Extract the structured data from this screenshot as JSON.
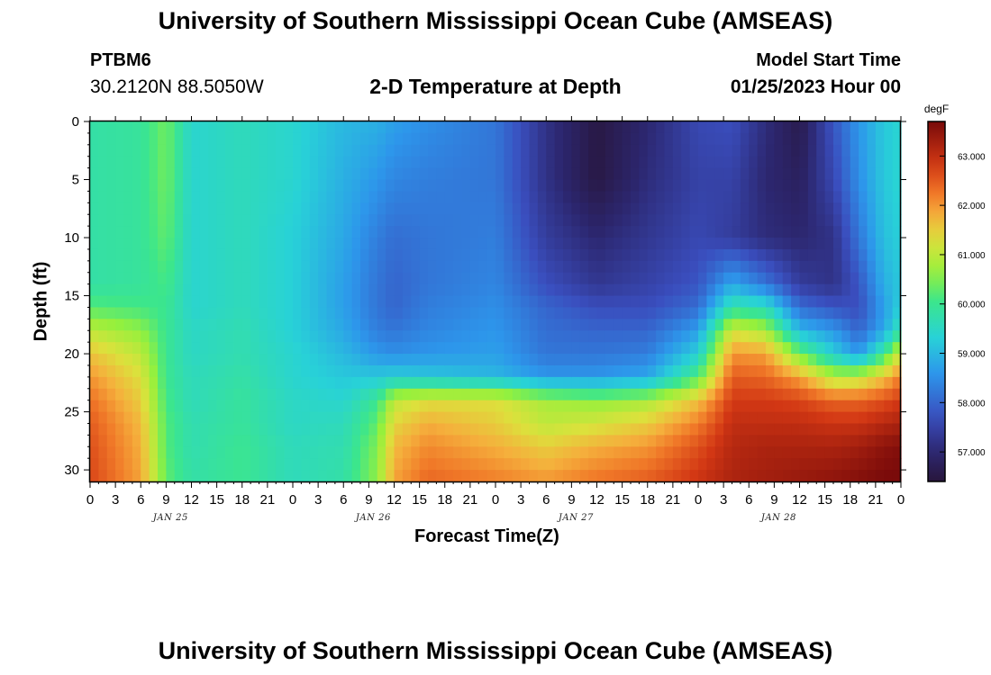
{
  "header": {
    "title": "University of Southern Mississippi Ocean Cube (AMSEAS)",
    "station": "PTBM6",
    "coords": "30.2120N  88.5050W",
    "chart_title": "2-D Temperature at Depth",
    "model_start_label": "Model Start Time",
    "model_start_value": "01/25/2023 Hour 00"
  },
  "footer": {
    "title": "University of Southern Mississippi Ocean Cube (AMSEAS)"
  },
  "chart_data": {
    "type": "heatmap",
    "xlabel": "Forecast Time(Z)",
    "ylabel": "Depth (ft)",
    "x_ticks": [
      "0",
      "3",
      "6",
      "9",
      "12",
      "15",
      "18",
      "21",
      "0",
      "3",
      "6",
      "9",
      "12",
      "15",
      "18",
      "21",
      "0",
      "3",
      "6",
      "9",
      "12",
      "15",
      "18",
      "21",
      "0",
      "3",
      "6",
      "9",
      "12",
      "15",
      "18",
      "21",
      "0"
    ],
    "x_date_labels": [
      {
        "label": "JAN 25",
        "hour": 9
      },
      {
        "label": "JAN 26",
        "hour": 33
      },
      {
        "label": "JAN 27",
        "hour": 57
      },
      {
        "label": "JAN 28",
        "hour": 81
      }
    ],
    "xlim_hours": [
      0,
      96
    ],
    "y_ticks": [
      0,
      5,
      10,
      15,
      20,
      25,
      30
    ],
    "ylim": [
      0,
      31
    ],
    "colorbar": {
      "unit": "degF",
      "min": 56.4,
      "max": 63.7,
      "ticks": [
        "63.000",
        "62.000",
        "61.000",
        "60.000",
        "59.000",
        "58.000",
        "57.000"
      ]
    },
    "profile_hours": [
      0,
      6,
      9,
      12,
      18,
      24,
      30,
      34,
      36,
      40,
      48,
      54,
      60,
      66,
      72,
      76,
      80,
      84,
      88,
      91,
      94,
      96
    ],
    "profile_depths": [
      0,
      5,
      10,
      14,
      16,
      18,
      20,
      22,
      24,
      26,
      28,
      31
    ],
    "values": [
      [
        59.8,
        59.8,
        59.8,
        59.8,
        60.2,
        61.0,
        61.6,
        62.0,
        62.3,
        62.5,
        62.6,
        62.7
      ],
      [
        59.9,
        59.9,
        59.9,
        59.9,
        60.1,
        60.6,
        61.0,
        61.3,
        61.5,
        61.7,
        61.8,
        61.9
      ],
      [
        60.4,
        60.4,
        60.3,
        60.1,
        60.0,
        60.0,
        60.0,
        60.0,
        60.1,
        60.2,
        60.2,
        60.3
      ],
      [
        59.4,
        59.4,
        59.4,
        59.4,
        59.4,
        59.5,
        59.5,
        59.6,
        59.6,
        59.7,
        59.7,
        59.8
      ],
      [
        59.6,
        59.6,
        59.6,
        59.6,
        59.6,
        59.7,
        59.7,
        59.8,
        59.9,
        59.9,
        60.0,
        60.0
      ],
      [
        59.4,
        59.4,
        59.3,
        59.3,
        59.3,
        59.3,
        59.4,
        59.4,
        59.5,
        59.5,
        59.6,
        59.6
      ],
      [
        59.0,
        58.9,
        58.8,
        58.7,
        58.7,
        58.8,
        59.0,
        59.2,
        59.4,
        59.6,
        59.7,
        59.8
      ],
      [
        58.9,
        58.6,
        58.3,
        58.2,
        58.2,
        58.3,
        58.6,
        59.2,
        60.0,
        60.3,
        60.5,
        60.6
      ],
      [
        58.7,
        58.4,
        58.1,
        58.0,
        58.0,
        58.2,
        58.5,
        59.3,
        61.0,
        61.4,
        61.7,
        61.9
      ],
      [
        58.5,
        58.3,
        58.2,
        58.2,
        58.3,
        58.4,
        58.6,
        59.2,
        61.3,
        61.8,
        62.1,
        62.4
      ],
      [
        58.2,
        58.2,
        58.3,
        58.4,
        58.5,
        58.6,
        58.7,
        59.0,
        61.3,
        61.5,
        61.8,
        62.2
      ],
      [
        57.2,
        57.2,
        57.4,
        57.7,
        58.0,
        58.1,
        58.2,
        58.6,
        60.8,
        61.0,
        61.5,
        62.0
      ],
      [
        56.5,
        56.5,
        57.0,
        57.3,
        57.7,
        58.0,
        58.2,
        58.6,
        60.6,
        61.2,
        61.8,
        62.3
      ],
      [
        57.0,
        57.1,
        57.3,
        57.5,
        57.7,
        58.0,
        58.3,
        58.8,
        60.8,
        61.5,
        62.0,
        62.5
      ],
      [
        57.6,
        57.5,
        57.6,
        57.8,
        58.1,
        58.7,
        59.3,
        60.2,
        61.6,
        62.2,
        62.6,
        62.9
      ],
      [
        57.7,
        57.5,
        57.4,
        58.8,
        59.8,
        61.2,
        62.0,
        62.5,
        62.8,
        63.0,
        63.1,
        63.2
      ],
      [
        57.1,
        57.0,
        57.1,
        58.2,
        59.6,
        60.8,
        61.9,
        62.4,
        62.8,
        63.0,
        63.2,
        63.3
      ],
      [
        56.6,
        56.8,
        57.0,
        57.4,
        58.1,
        59.0,
        60.4,
        61.9,
        62.7,
        63.0,
        63.2,
        63.4
      ],
      [
        57.8,
        57.6,
        57.2,
        57.2,
        57.8,
        58.6,
        59.3,
        60.9,
        62.4,
        62.9,
        63.2,
        63.5
      ],
      [
        58.6,
        58.5,
        58.2,
        57.8,
        57.7,
        58.0,
        58.6,
        61.0,
        62.4,
        62.9,
        63.3,
        63.6
      ],
      [
        59.2,
        59.2,
        59.1,
        58.9,
        58.7,
        58.8,
        60.0,
        61.6,
        62.6,
        63.1,
        63.5,
        63.7
      ],
      [
        59.4,
        59.4,
        59.3,
        59.2,
        59.3,
        59.8,
        61.2,
        62.2,
        62.8,
        63.2,
        63.6,
        63.7
      ]
    ]
  }
}
